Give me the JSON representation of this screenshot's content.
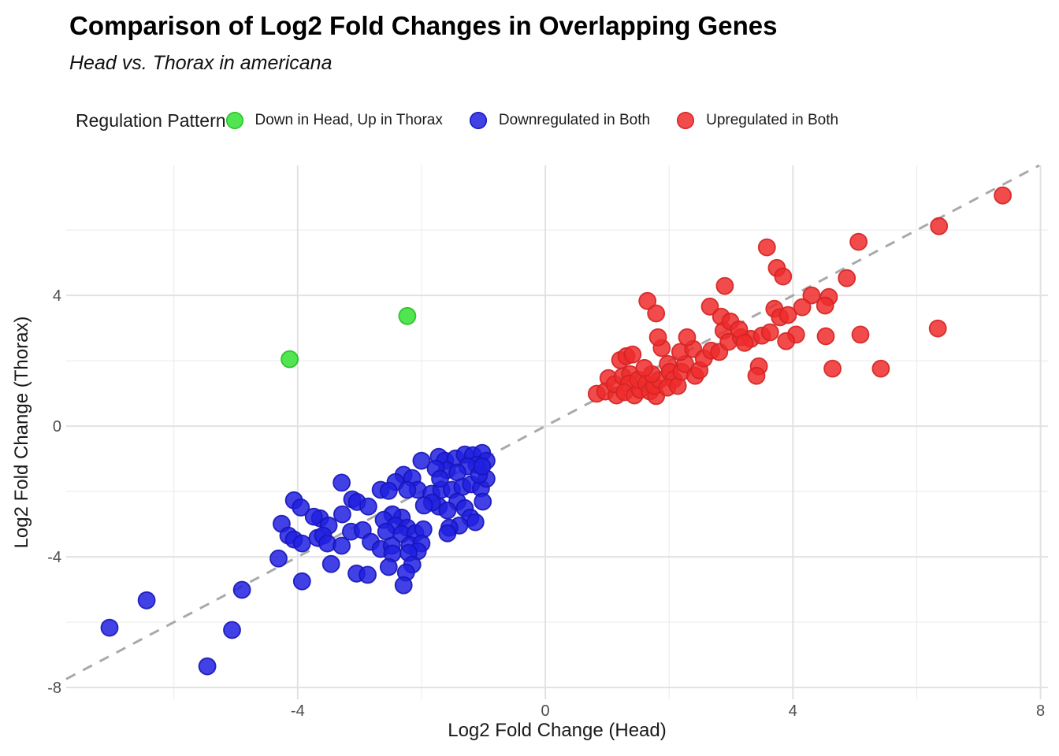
{
  "chart_data": {
    "type": "scatter",
    "title": "Comparison of Log2 Fold Changes in Overlapping Genes",
    "subtitle": "Head vs. Thorax in americana",
    "xlabel": "Log2 Fold Change (Head)",
    "ylabel": "Log2 Fold Change (Thorax)",
    "xlim": [
      -7.74,
      8.12
    ],
    "ylim": [
      -8.36,
      7.98
    ],
    "x_ticks": {
      "values": [
        -4,
        0,
        4,
        8
      ],
      "labels": [
        "-4",
        "0",
        "4",
        "8"
      ],
      "minor": [
        -6,
        -2,
        2,
        6
      ]
    },
    "y_ticks": {
      "values": [
        4,
        0,
        -4,
        -8
      ],
      "labels": [
        "4",
        "0",
        "-4",
        "-8"
      ],
      "minor": [
        6,
        2,
        -2,
        -6
      ]
    },
    "grid": true,
    "legend_position": "top",
    "legend_title": "Regulation Pattern",
    "identity_line": {
      "style": "dashed",
      "color": "#a9a9a9",
      "x1": -7.74,
      "y1": -7.74,
      "x2": 7.98,
      "y2": 7.98
    },
    "colors": {
      "major_grid": "#e2e2e2",
      "minor_grid": "#ededed",
      "tick_text": "#4d4d4d"
    },
    "point_alpha": 0.85,
    "series": [
      {
        "name": "Down in Head, Up in Thorax",
        "color": "#33e033",
        "stroke": "#22c022",
        "points": [
          [
            -4.13,
            2.05
          ],
          [
            -2.23,
            3.37
          ]
        ]
      },
      {
        "name": "Downregulated in Both",
        "color": "#2020e0",
        "stroke": "#1515b8",
        "points": [
          [
            -7.04,
            -6.17
          ],
          [
            -6.44,
            -5.33
          ],
          [
            -5.46,
            -7.35
          ],
          [
            -5.06,
            -6.24
          ],
          [
            -4.9,
            -5.01
          ],
          [
            -4.31,
            -4.05
          ],
          [
            -3.93,
            -4.75
          ],
          [
            -3.29,
            -1.73
          ],
          [
            -4.06,
            -2.27
          ],
          [
            -3.95,
            -2.49
          ],
          [
            -3.12,
            -2.24
          ],
          [
            -3.04,
            -2.32
          ],
          [
            -2.86,
            -2.46
          ],
          [
            -2.66,
            -1.95
          ],
          [
            -3.28,
            -2.7
          ],
          [
            -4.26,
            -2.99
          ],
          [
            -3.64,
            -2.82
          ],
          [
            -3.74,
            -2.77
          ],
          [
            -3.5,
            -3.04
          ],
          [
            -4.15,
            -3.35
          ],
          [
            -4.06,
            -3.47
          ],
          [
            -3.93,
            -3.59
          ],
          [
            -3.68,
            -3.42
          ],
          [
            -3.59,
            -3.35
          ],
          [
            -3.52,
            -3.59
          ],
          [
            -3.29,
            -3.66
          ],
          [
            -3.14,
            -3.23
          ],
          [
            -2.95,
            -3.18
          ],
          [
            -2.82,
            -3.54
          ],
          [
            -3.46,
            -4.22
          ],
          [
            -3.05,
            -4.51
          ],
          [
            -2.87,
            -4.55
          ],
          [
            -2.0,
            -1.06
          ],
          [
            -1.72,
            -0.94
          ],
          [
            -1.62,
            -1.06
          ],
          [
            -1.45,
            -0.99
          ],
          [
            -1.3,
            -0.87
          ],
          [
            -1.17,
            -0.89
          ],
          [
            -1.02,
            -0.82
          ],
          [
            -0.95,
            -1.06
          ],
          [
            -1.11,
            -1.18
          ],
          [
            -1.26,
            -1.23
          ],
          [
            -1.59,
            -1.35
          ],
          [
            -1.42,
            -1.42
          ],
          [
            -1.77,
            -1.3
          ],
          [
            -2.29,
            -1.49
          ],
          [
            -2.15,
            -1.59
          ],
          [
            -2.42,
            -1.71
          ],
          [
            -2.06,
            -1.95
          ],
          [
            -2.23,
            -1.95
          ],
          [
            -2.53,
            -1.98
          ],
          [
            -1.84,
            -2.07
          ],
          [
            -1.68,
            -1.95
          ],
          [
            -1.51,
            -1.95
          ],
          [
            -1.34,
            -1.86
          ],
          [
            -1.2,
            -1.78
          ],
          [
            -1.04,
            -1.9
          ],
          [
            -0.95,
            -1.61
          ],
          [
            -1.07,
            -1.49
          ],
          [
            -1.7,
            -1.61
          ],
          [
            -1.02,
            -1.23
          ],
          [
            -1.42,
            -2.31
          ],
          [
            -1.3,
            -2.51
          ],
          [
            -1.72,
            -2.46
          ],
          [
            -1.58,
            -2.58
          ],
          [
            -1.83,
            -2.34
          ],
          [
            -1.96,
            -2.43
          ],
          [
            -1.21,
            -2.8
          ],
          [
            -1.13,
            -2.94
          ],
          [
            -1.39,
            -3.04
          ],
          [
            -1.55,
            -3.11
          ],
          [
            -2.32,
            -2.8
          ],
          [
            -2.47,
            -2.7
          ],
          [
            -2.61,
            -2.87
          ],
          [
            -2.42,
            -3.04
          ],
          [
            -2.23,
            -3.11
          ],
          [
            -2.57,
            -3.23
          ],
          [
            -2.32,
            -3.3
          ],
          [
            -2.1,
            -3.28
          ],
          [
            -1.97,
            -3.16
          ],
          [
            -1.58,
            -3.28
          ],
          [
            -2.66,
            -3.76
          ],
          [
            -2.48,
            -3.66
          ],
          [
            -2.19,
            -3.64
          ],
          [
            -2.0,
            -3.59
          ],
          [
            -2.06,
            -3.83
          ],
          [
            -2.21,
            -3.88
          ],
          [
            -2.47,
            -3.9
          ],
          [
            -2.15,
            -4.24
          ],
          [
            -2.53,
            -4.31
          ],
          [
            -2.25,
            -4.48
          ],
          [
            -2.29,
            -4.87
          ],
          [
            -1.01,
            -2.31
          ]
        ]
      },
      {
        "name": "Upregulated in Both",
        "color": "#ee2c2c",
        "stroke": "#d32222",
        "points": [
          [
            0.83,
            0.99
          ],
          [
            1.02,
            1.47
          ],
          [
            0.97,
            1.06
          ],
          [
            1.15,
            0.94
          ],
          [
            1.12,
            1.28
          ],
          [
            1.25,
            1.52
          ],
          [
            1.21,
            2.02
          ],
          [
            1.31,
            2.14
          ],
          [
            1.41,
            2.19
          ],
          [
            1.37,
            1.59
          ],
          [
            1.35,
            1.3
          ],
          [
            1.28,
            1.04
          ],
          [
            1.44,
            0.94
          ],
          [
            1.53,
            1.11
          ],
          [
            1.5,
            1.42
          ],
          [
            1.63,
            1.3
          ],
          [
            1.69,
            1.06
          ],
          [
            1.79,
            0.92
          ],
          [
            1.76,
            1.23
          ],
          [
            1.84,
            1.42
          ],
          [
            1.72,
            1.59
          ],
          [
            1.6,
            1.78
          ],
          [
            1.88,
            2.39
          ],
          [
            1.98,
            1.9
          ],
          [
            2.01,
            1.66
          ],
          [
            2.07,
            1.42
          ],
          [
            1.97,
            1.18
          ],
          [
            2.14,
            1.23
          ],
          [
            2.2,
            1.66
          ],
          [
            2.26,
            1.9
          ],
          [
            2.18,
            2.27
          ],
          [
            2.39,
            2.36
          ],
          [
            2.42,
            1.54
          ],
          [
            2.49,
            1.71
          ],
          [
            2.56,
            2.07
          ],
          [
            2.68,
            2.31
          ],
          [
            2.81,
            2.27
          ],
          [
            1.82,
            2.72
          ],
          [
            2.29,
            2.72
          ],
          [
            1.65,
            3.83
          ],
          [
            1.79,
            3.45
          ],
          [
            2.9,
            4.29
          ],
          [
            2.66,
            3.66
          ],
          [
            2.84,
            3.35
          ],
          [
            3.58,
            5.47
          ],
          [
            3.74,
            4.84
          ],
          [
            3.84,
            4.58
          ],
          [
            3.7,
            3.59
          ],
          [
            3.79,
            3.33
          ],
          [
            3.92,
            3.4
          ],
          [
            2.88,
            2.92
          ],
          [
            2.96,
            2.58
          ],
          [
            3.16,
            2.72
          ],
          [
            3.32,
            2.67
          ],
          [
            4.05,
            2.8
          ],
          [
            2.99,
            3.2
          ],
          [
            3.13,
            2.96
          ],
          [
            3.22,
            2.55
          ],
          [
            3.5,
            2.77
          ],
          [
            3.63,
            2.87
          ],
          [
            3.89,
            2.6
          ],
          [
            4.53,
            2.75
          ],
          [
            5.09,
            2.8
          ],
          [
            4.64,
            1.76
          ],
          [
            3.45,
            1.83
          ],
          [
            3.41,
            1.54
          ],
          [
            5.06,
            5.64
          ],
          [
            4.87,
            4.53
          ],
          [
            6.36,
            6.12
          ],
          [
            4.3,
            4.0
          ],
          [
            4.58,
            3.95
          ],
          [
            4.52,
            3.69
          ],
          [
            4.15,
            3.64
          ],
          [
            7.39,
            7.06
          ],
          [
            6.34,
            2.99
          ],
          [
            5.42,
            1.76
          ]
        ]
      }
    ]
  }
}
